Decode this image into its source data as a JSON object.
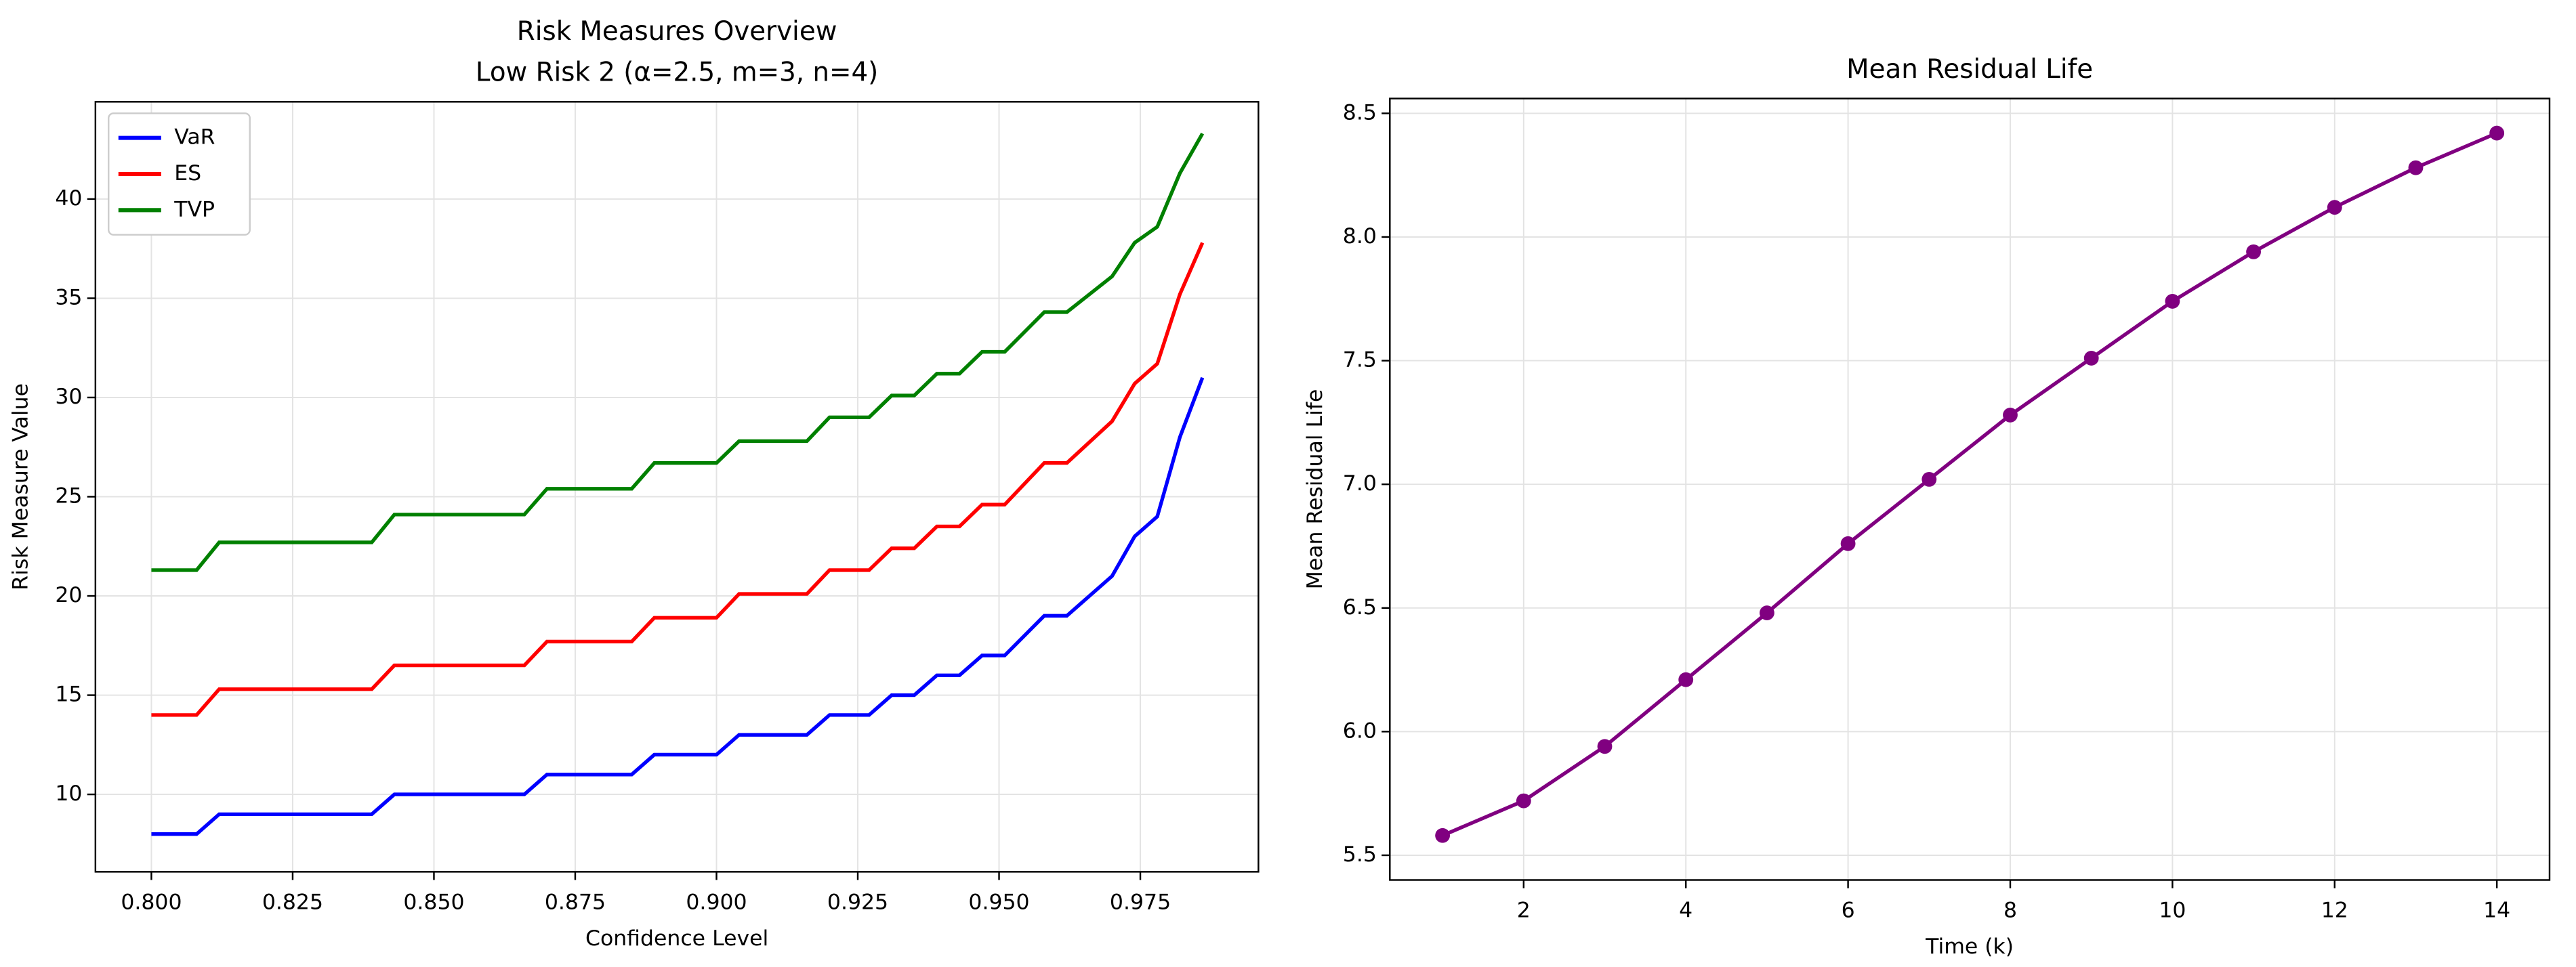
{
  "chart_data": [
    {
      "type": "line",
      "title": "Risk Measures Overview",
      "subtitle": "Low Risk 2 (α=2.5, m=3, n=4)",
      "x_label": "Confidence Level",
      "y_label": "Risk Measure Value",
      "x": [
        0.8,
        0.808,
        0.812,
        0.839,
        0.843,
        0.866,
        0.87,
        0.885,
        0.889,
        0.9,
        0.904,
        0.916,
        0.92,
        0.927,
        0.931,
        0.935,
        0.939,
        0.943,
        0.947,
        0.951,
        0.958,
        0.962,
        0.97,
        0.974,
        0.978,
        0.982,
        0.986
      ],
      "series": [
        {
          "name": "VaR",
          "color": "#0000ff",
          "values": [
            8,
            8,
            9,
            9,
            10,
            10,
            11,
            11,
            12,
            12,
            13,
            13,
            14,
            14,
            15,
            15,
            16,
            16,
            17,
            17,
            19,
            19,
            21,
            23,
            24,
            28,
            31
          ]
        },
        {
          "name": "ES",
          "color": "#ff0000",
          "values": [
            14,
            14,
            15.3,
            15.3,
            16.5,
            16.5,
            17.7,
            17.7,
            18.9,
            18.9,
            20.1,
            20.1,
            21.3,
            21.3,
            22.4,
            22.4,
            23.5,
            23.5,
            24.6,
            24.6,
            26.7,
            26.7,
            28.8,
            30.7,
            31.7,
            35.2,
            37.8
          ]
        },
        {
          "name": "TVP",
          "color": "#008000",
          "values": [
            21.3,
            21.3,
            22.7,
            22.7,
            24.1,
            24.1,
            25.4,
            25.4,
            26.7,
            26.7,
            27.8,
            27.8,
            29.0,
            29.0,
            30.1,
            30.1,
            31.2,
            31.2,
            32.3,
            32.3,
            34.3,
            34.3,
            36.1,
            37.8,
            38.6,
            41.3,
            43.3
          ]
        }
      ],
      "xlim": [
        0.7901,
        0.9959
      ],
      "xticks": [
        {
          "value": 0.8,
          "label": "0.800"
        },
        {
          "value": 0.825,
          "label": "0.825"
        },
        {
          "value": 0.85,
          "label": "0.850"
        },
        {
          "value": 0.875,
          "label": "0.875"
        },
        {
          "value": 0.9,
          "label": "0.900"
        },
        {
          "value": 0.925,
          "label": "0.925"
        },
        {
          "value": 0.95,
          "label": "0.950"
        },
        {
          "value": 0.975,
          "label": "0.975"
        }
      ],
      "ylim": [
        6.1,
        44.9
      ],
      "yticks": [
        10,
        15,
        20,
        25,
        30,
        35,
        40
      ],
      "grid": true,
      "legend": "upper-left",
      "markers": false
    },
    {
      "type": "line",
      "title": "Mean Residual Life",
      "x_label": "Time (k)",
      "y_label": "Mean Residual Life",
      "x": [
        1,
        2,
        3,
        4,
        5,
        6,
        7,
        8,
        9,
        10,
        11,
        12,
        13,
        14
      ],
      "series": [
        {
          "name": "Mean Residual Life",
          "color": "#800080",
          "values": [
            5.58,
            5.72,
            5.94,
            6.21,
            6.48,
            6.76,
            7.02,
            7.28,
            7.51,
            7.74,
            7.94,
            8.12,
            8.28,
            8.42
          ]
        }
      ],
      "xlim": [
        0.35,
        14.65
      ],
      "xticks": [
        2,
        4,
        6,
        8,
        10,
        12,
        14
      ],
      "ylim": [
        5.4,
        8.56
      ],
      "yticks": [
        {
          "value": 5.5,
          "label": "5.5"
        },
        {
          "value": 6,
          "label": "6.0"
        },
        {
          "value": 6.5,
          "label": "6.5"
        },
        {
          "value": 7,
          "label": "7.0"
        },
        {
          "value": 7.5,
          "label": "7.5"
        },
        {
          "value": 8,
          "label": "8.0"
        },
        {
          "value": 8.5,
          "label": "8.5"
        }
      ],
      "grid": true,
      "markers": true
    }
  ]
}
